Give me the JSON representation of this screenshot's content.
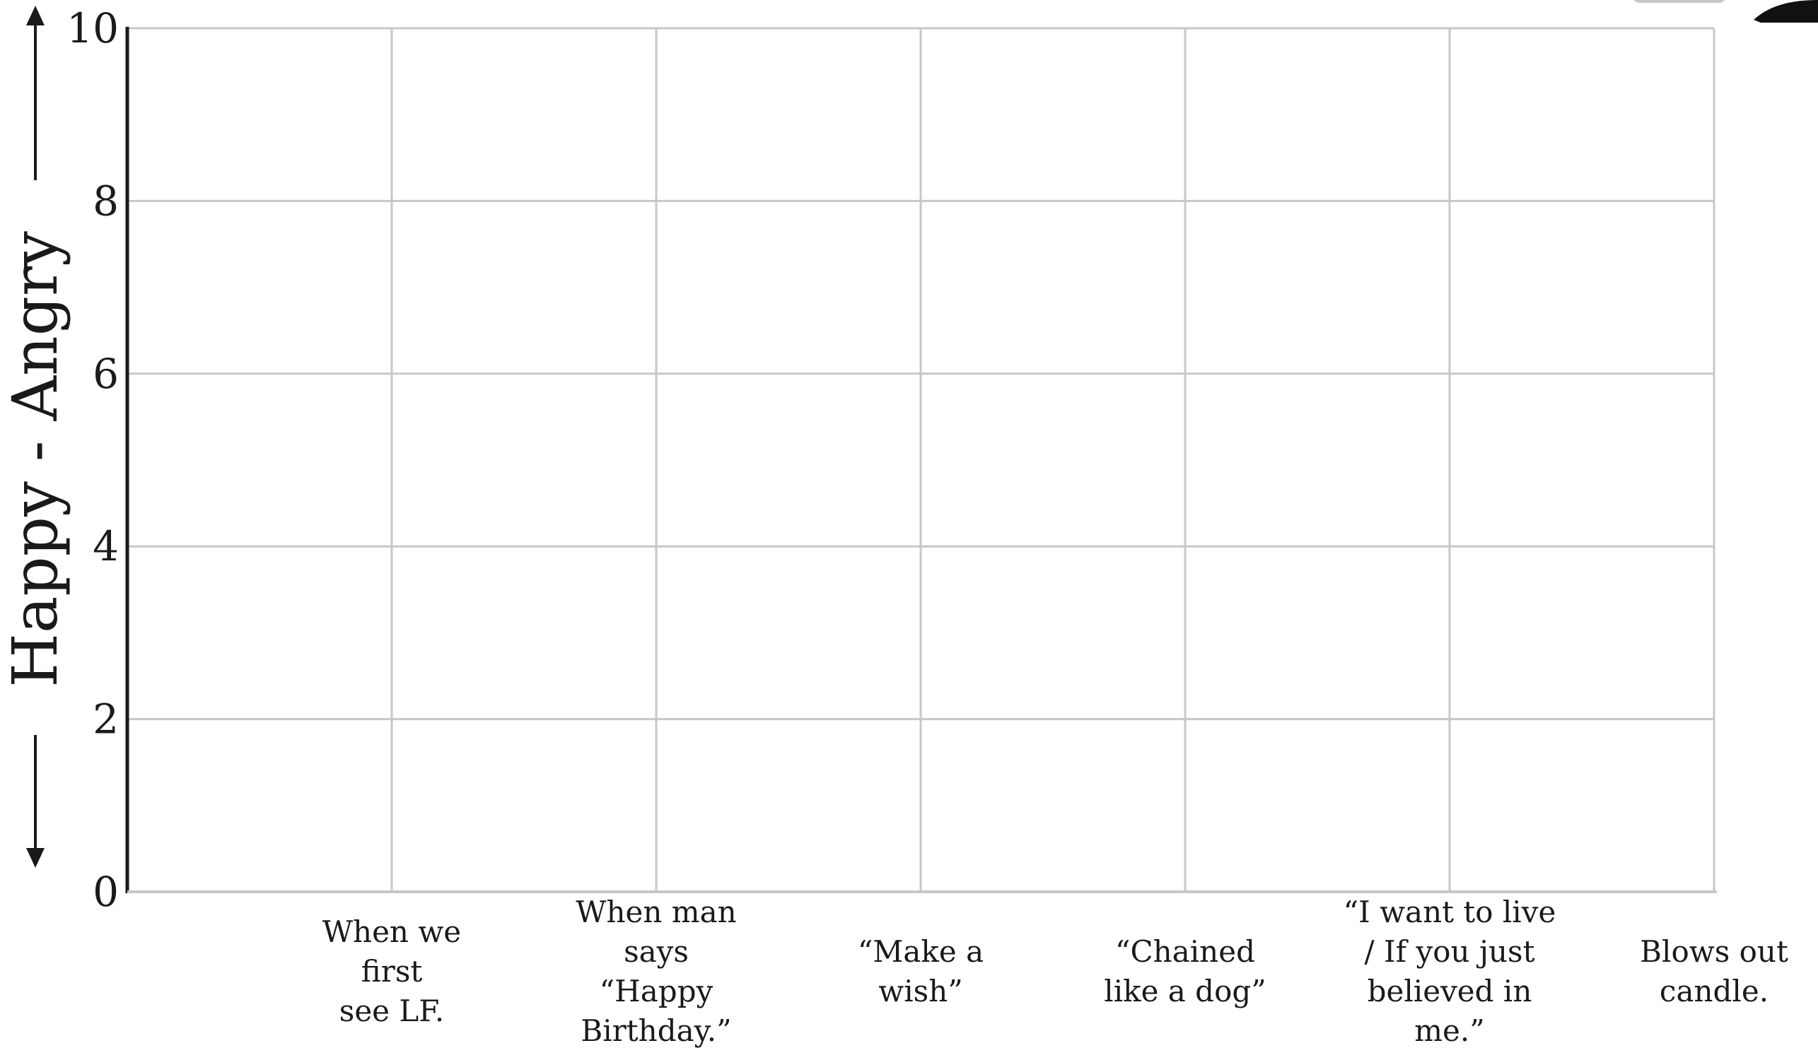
{
  "chart_data": {
    "type": "line",
    "ylabel": "Happy  - Angry",
    "ylim": [
      0,
      10
    ],
    "yticks": [
      0,
      2,
      4,
      6,
      8,
      10
    ],
    "grid": true,
    "categories": [
      "When we first see LF.",
      "When man says “Happy Birthday.”",
      "“Make a wish”",
      "“Chained like a dog”",
      "“I want to live / If you just believed in me.”",
      "Blows out candle."
    ],
    "category_lines": [
      [
        "When we",
        "first",
        "see LF."
      ],
      [
        "When man",
        "says",
        "“Happy",
        "Birthday.”"
      ],
      [
        "“Make a",
        "wish”"
      ],
      [
        "“Chained",
        "like a dog”"
      ],
      [
        "“I want to live",
        "/ If you just",
        "believed in",
        "me.”"
      ],
      [
        "Blows out",
        "candle."
      ]
    ],
    "series": []
  }
}
